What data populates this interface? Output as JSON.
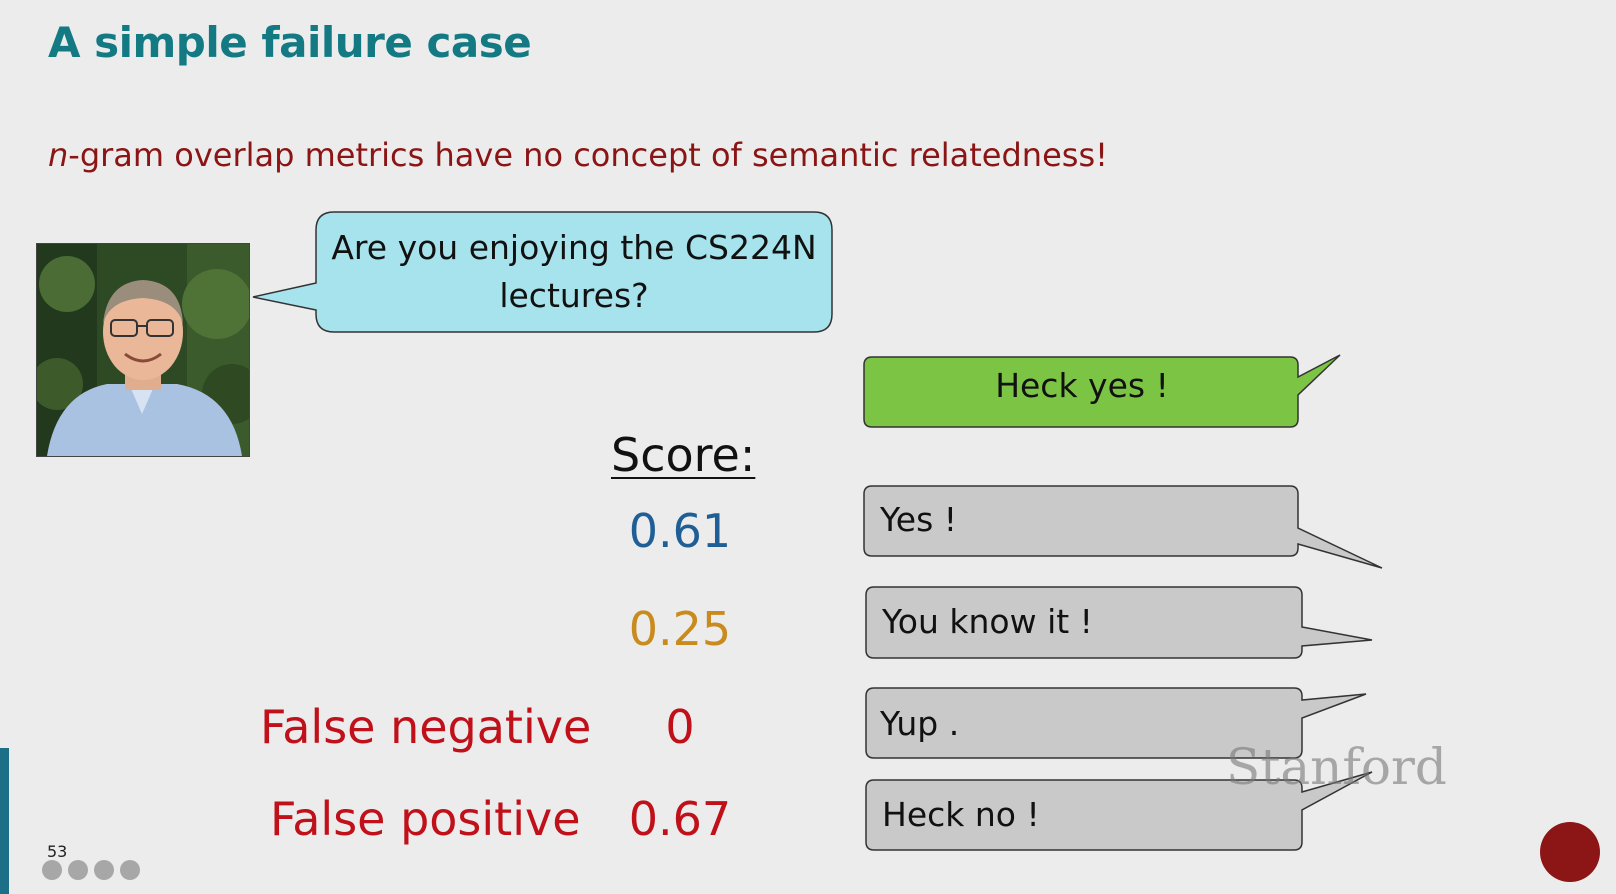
{
  "slide": {
    "title": "A simple failure case",
    "subtitle_prefix": "n",
    "subtitle_rest": "-gram overlap metrics have no concept of semantic relatedness!",
    "page_number": "53"
  },
  "dialogue": {
    "question": "Are you enjoying the CS224N lectures?",
    "reference": "Heck yes !",
    "candidates": [
      "Yes !",
      "You know it !",
      "Yup .",
      "Heck no !"
    ]
  },
  "scores": {
    "header": "Score:",
    "values": [
      "0.61",
      "0.25",
      "0",
      "0.67"
    ],
    "labels": {
      "false_negative": "False negative",
      "false_positive": "False positive"
    }
  },
  "branding": {
    "logo_text": "Stanford"
  },
  "colors": {
    "title": "#137a84",
    "subtitle": "#8b1414",
    "question_bubble": "#a6e3ec",
    "reference_bubble": "#7cc443",
    "candidate_bubble": "#c9c9c9",
    "score_1": "#1f5f96",
    "score_2": "#c98a1e",
    "score_red": "#c0101a"
  }
}
